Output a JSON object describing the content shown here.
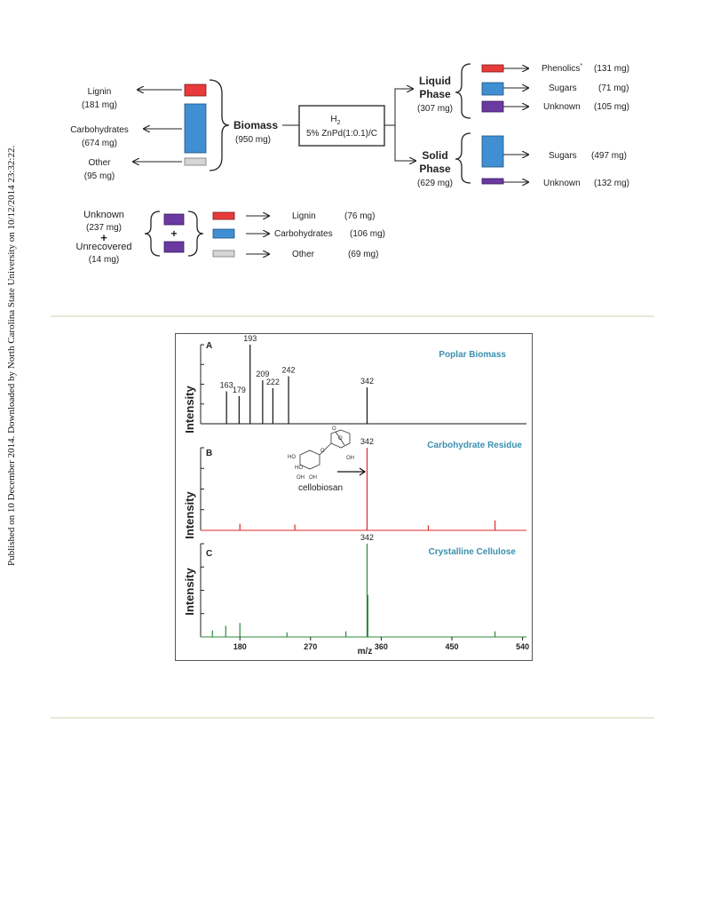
{
  "sidebar_text": "Published on 10 December 2014. Downloaded by North Carolina State University on 10/12/2014 23:32:22.",
  "scheme": {
    "biomass_label": "Biomass",
    "biomass_mass": "(950 mg)",
    "components": [
      {
        "name": "Lignin",
        "mass": "(181 mg)",
        "color": "#e83a3a"
      },
      {
        "name": "Carbohydrates",
        "mass": "(674 mg)",
        "color": "#3f8fd2"
      },
      {
        "name": "Other",
        "mass": "(95 mg)",
        "color": "#d6d6d6"
      }
    ],
    "catalyst_line1": "H",
    "catalyst_sub": "2",
    "catalyst_line2": "5% ZnPd(1:0.1)/C",
    "liquid_phase": {
      "line1": "Liquid",
      "line2": "Phase",
      "mass": "(307 mg)"
    },
    "solid_phase": {
      "line1": "Solid",
      "line2": "Phase",
      "mass": "(629 mg)"
    },
    "liquid_products": [
      {
        "name": "Phenolics",
        "sup": "*",
        "mass": "(131 mg)",
        "color": "#e83a3a"
      },
      {
        "name": "Sugars",
        "sup": "",
        "mass": "(71 mg)",
        "color": "#3f8fd2"
      },
      {
        "name": "Unknown",
        "sup": "",
        "mass": "(105 mg)",
        "color": "#6b3aa0"
      }
    ],
    "solid_products": [
      {
        "name": "Sugars",
        "mass": "(497 mg)",
        "color": "#3f8fd2"
      },
      {
        "name": "Unknown",
        "mass": "(132 mg)",
        "color": "#6b3aa0"
      }
    ],
    "unknown_label": "Unknown",
    "unknown_mass": "(237 mg)",
    "plus": "+",
    "unrecovered_label": "Unrecovered",
    "unrecovered_mass": "(14 mg)",
    "unknown_breakdown": [
      {
        "name": "Lignin",
        "mass": "(76 mg)",
        "color": "#e83a3a"
      },
      {
        "name": "Carbohydrates",
        "mass": "(106 mg)",
        "color": "#3f8fd2"
      },
      {
        "name": "Other",
        "mass": "(69 mg)",
        "color": "#d6d6d6"
      }
    ]
  },
  "chart_data": [
    {
      "type": "bar",
      "panel": "A",
      "title": "Poplar Biomass",
      "ylabel": "Intensity",
      "color": "#111111",
      "title_color": "#3a8fb0",
      "xlim": [
        130,
        545
      ],
      "peaks": [
        {
          "x": 163,
          "y": 0.41,
          "label": "163"
        },
        {
          "x": 179,
          "y": 0.35,
          "label": "179"
        },
        {
          "x": 193,
          "y": 1.0,
          "label": "193"
        },
        {
          "x": 209,
          "y": 0.55,
          "label": "209"
        },
        {
          "x": 222,
          "y": 0.45,
          "label": "222"
        },
        {
          "x": 242,
          "y": 0.6,
          "label": "242"
        },
        {
          "x": 342,
          "y": 0.46,
          "label": "342"
        }
      ]
    },
    {
      "type": "bar",
      "panel": "B",
      "title": "Carbohydrate Residue",
      "ylabel": "Intensity",
      "color": "#e0282c",
      "title_color": "#3a8fb0",
      "xlim": [
        130,
        545
      ],
      "inset_label": "cellobiosan",
      "peaks": [
        {
          "x": 342,
          "y": 1.0,
          "label": "342"
        },
        {
          "x": 180,
          "y": 0.08,
          "label": ""
        },
        {
          "x": 250,
          "y": 0.07,
          "label": ""
        },
        {
          "x": 420,
          "y": 0.06,
          "label": ""
        },
        {
          "x": 505,
          "y": 0.12,
          "label": ""
        }
      ]
    },
    {
      "type": "bar",
      "panel": "C",
      "title": "Crystalline Cellulose",
      "ylabel": "Intensity",
      "color": "#2e8a3c",
      "title_color": "#3a8fb0",
      "xlim": [
        130,
        545
      ],
      "xlabel": "m/z",
      "xticks": [
        "180",
        "270",
        "360",
        "450",
        "540"
      ],
      "peaks": [
        {
          "x": 342,
          "y": 1.0,
          "label": "342"
        },
        {
          "x": 343,
          "y": 0.45,
          "label": ""
        },
        {
          "x": 145,
          "y": 0.07,
          "label": ""
        },
        {
          "x": 162,
          "y": 0.12,
          "label": ""
        },
        {
          "x": 180,
          "y": 0.15,
          "label": ""
        },
        {
          "x": 240,
          "y": 0.05,
          "label": ""
        },
        {
          "x": 315,
          "y": 0.06,
          "label": ""
        },
        {
          "x": 505,
          "y": 0.06,
          "label": ""
        }
      ]
    }
  ]
}
